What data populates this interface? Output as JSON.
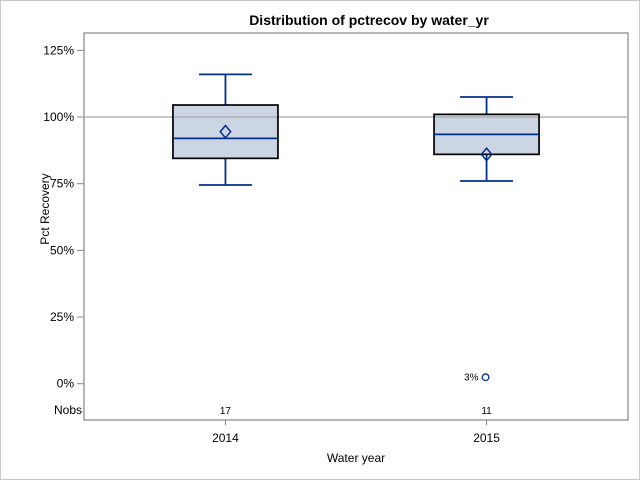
{
  "chart_data": {
    "type": "box",
    "title": "Distribution of pctrecov by water_yr",
    "xlabel": "Water year",
    "ylabel": "Pct Recovery",
    "y_axis": {
      "tick_labels": [
        "125%",
        "100%",
        "75%",
        "50%",
        "25%",
        "0%"
      ],
      "tick_values": [
        125,
        100,
        75,
        50,
        25,
        0
      ],
      "extra_row_label": "Nobs"
    },
    "ylim": [
      -13.6,
      131.5
    ],
    "reference_line_value": 100,
    "grid": "off",
    "legend": "none",
    "categories": [
      "2014",
      "2015"
    ],
    "series": [
      {
        "category": "2014",
        "nobs": "17",
        "whisker_low": 74.5,
        "q1": 84.5,
        "median": 92,
        "q3": 104.5,
        "whisker_high": 116,
        "mean": 94.5,
        "outliers": []
      },
      {
        "category": "2015",
        "nobs": "11",
        "whisker_low": 76,
        "q1": 86,
        "median": 93.5,
        "q3": 101,
        "whisker_high": 107.5,
        "mean": 86,
        "outliers": [
          {
            "value": 3,
            "label": "3%"
          }
        ]
      }
    ],
    "colors": {
      "box_fill": "#ccd5e4",
      "box_border": "#000000",
      "blue_line": "#03308a",
      "reference_line": "#a8a8a8",
      "axis": "#878787",
      "text": "#000000",
      "background": "#ffffff",
      "outer_border": "#c9c9c9"
    }
  }
}
